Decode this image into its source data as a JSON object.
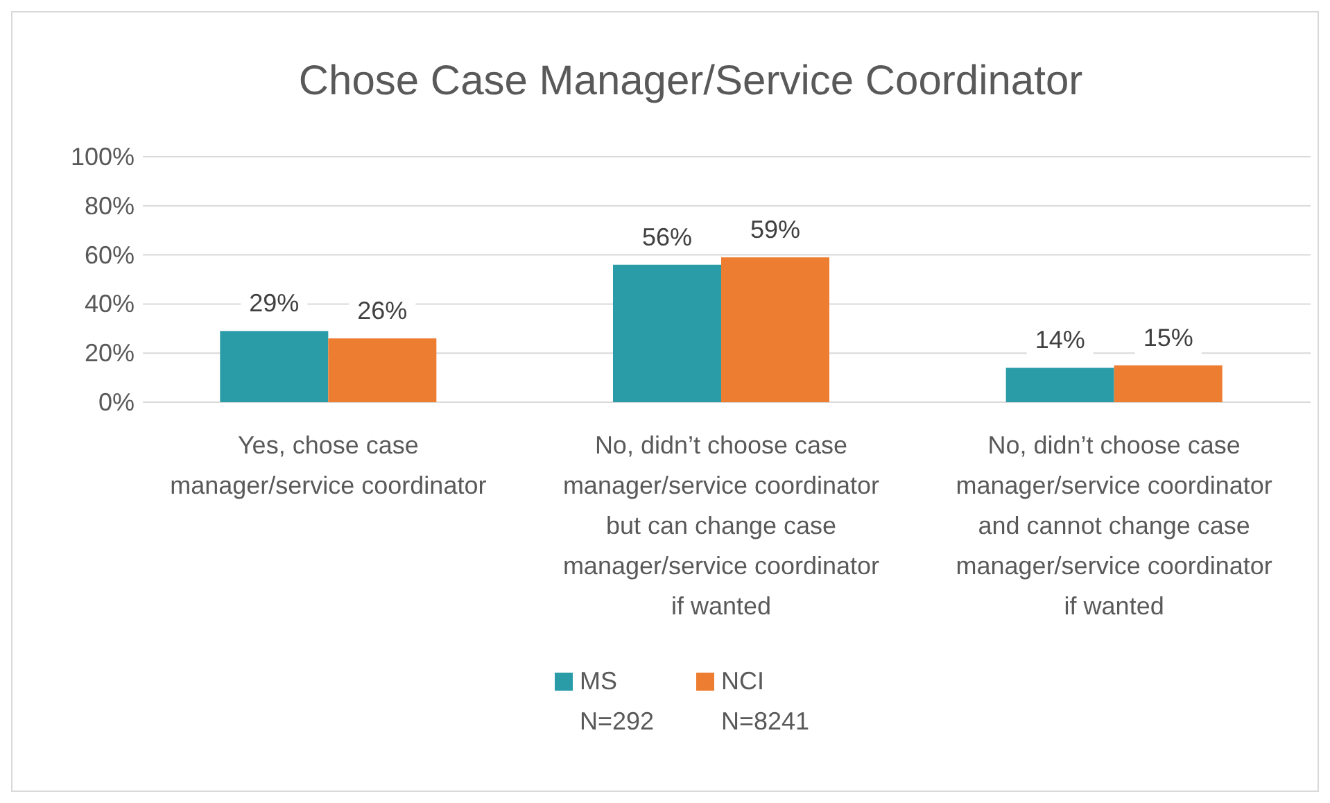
{
  "chart_data": {
    "type": "bar",
    "title": "Chose Case Manager/Service Coordinator",
    "categories": [
      "Yes, chose case manager/service coordinator",
      "No, didn’t choose case manager/service coordinator but can change case manager/service coordinator if wanted",
      "No, didn’t choose case manager/service coordinator and cannot change case manager/service coordinator if wanted"
    ],
    "series": [
      {
        "name": "MS\nN=292",
        "color": "#2a9ca8",
        "values": [
          29,
          56,
          14
        ],
        "value_labels": [
          "29%",
          "56%",
          "14%"
        ]
      },
      {
        "name": "NCI\nN=8241",
        "color": "#ed7d31",
        "values": [
          26,
          59,
          15
        ],
        "value_labels": [
          "26%",
          "59%",
          "15%"
        ]
      }
    ],
    "ylim": [
      0,
      100
    ],
    "yticks": [
      {
        "value": 0,
        "label": "0%"
      },
      {
        "value": 20,
        "label": "20%"
      },
      {
        "value": 40,
        "label": "40%"
      },
      {
        "value": 60,
        "label": "60%"
      },
      {
        "value": 80,
        "label": "80%"
      },
      {
        "value": 100,
        "label": "100%"
      }
    ],
    "grid": "y",
    "legend": "bottom"
  }
}
